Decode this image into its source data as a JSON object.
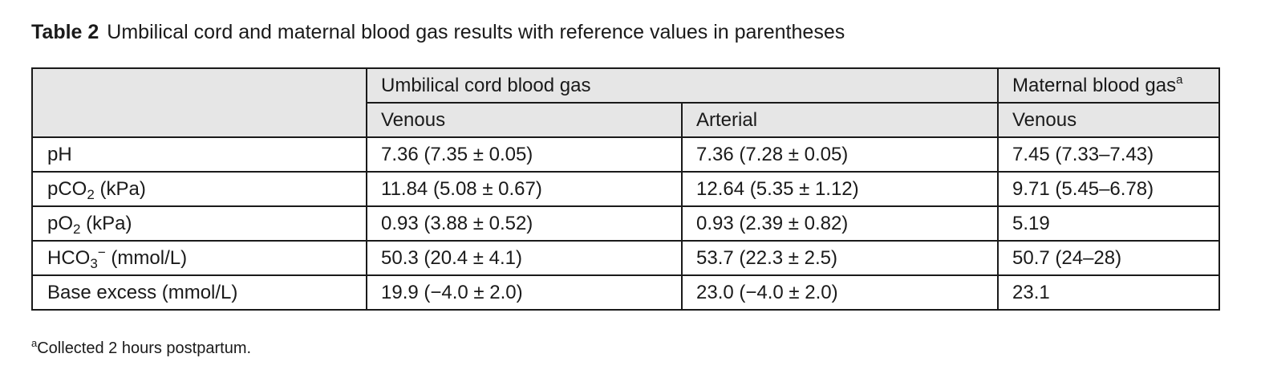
{
  "caption": {
    "label": "Table 2",
    "text": "Umbilical cord and maternal blood gas results with reference values in parentheses"
  },
  "header": {
    "group_umbilical": "Umbilical cord blood gas",
    "group_maternal": "Maternal blood gas",
    "maternal_marker": "a",
    "sub_venous": "Venous",
    "sub_arterial": "Arterial",
    "sub_maternal_venous": "Venous"
  },
  "rows": [
    {
      "param": {
        "prefix": "pH",
        "sub": "",
        "sup": "",
        "suffix": ""
      },
      "venous": "7.36 (7.35 ± 0.05)",
      "arterial": "7.36 (7.28 ± 0.05)",
      "maternal": "7.45 (7.33–7.43)"
    },
    {
      "param": {
        "prefix": "pCO",
        "sub": "2",
        "sup": "",
        "suffix": " (kPa)"
      },
      "venous": "11.84 (5.08 ± 0.67)",
      "arterial": "12.64 (5.35 ± 1.12)",
      "maternal": "9.71 (5.45–6.78)"
    },
    {
      "param": {
        "prefix": "pO",
        "sub": "2",
        "sup": "",
        "suffix": " (kPa)"
      },
      "venous": "0.93 (3.88 ± 0.52)",
      "arterial": "0.93 (2.39 ± 0.82)",
      "maternal": "5.19"
    },
    {
      "param": {
        "prefix": "HCO",
        "sub": "3",
        "sup": "−",
        "suffix": " (mmol/L)"
      },
      "venous": "50.3 (20.4 ± 4.1)",
      "arterial": "53.7 (22.3 ± 2.5)",
      "maternal": "50.7 (24–28)"
    },
    {
      "param": {
        "prefix": "Base excess (mmol/L)",
        "sub": "",
        "sup": "",
        "suffix": ""
      },
      "venous": "19.9 (−4.0 ± 2.0)",
      "arterial": "23.0 (−4.0 ± 2.0)",
      "maternal": "23.1"
    }
  ],
  "footnote": {
    "marker": "a",
    "text": "Collected 2 hours postpartum."
  }
}
